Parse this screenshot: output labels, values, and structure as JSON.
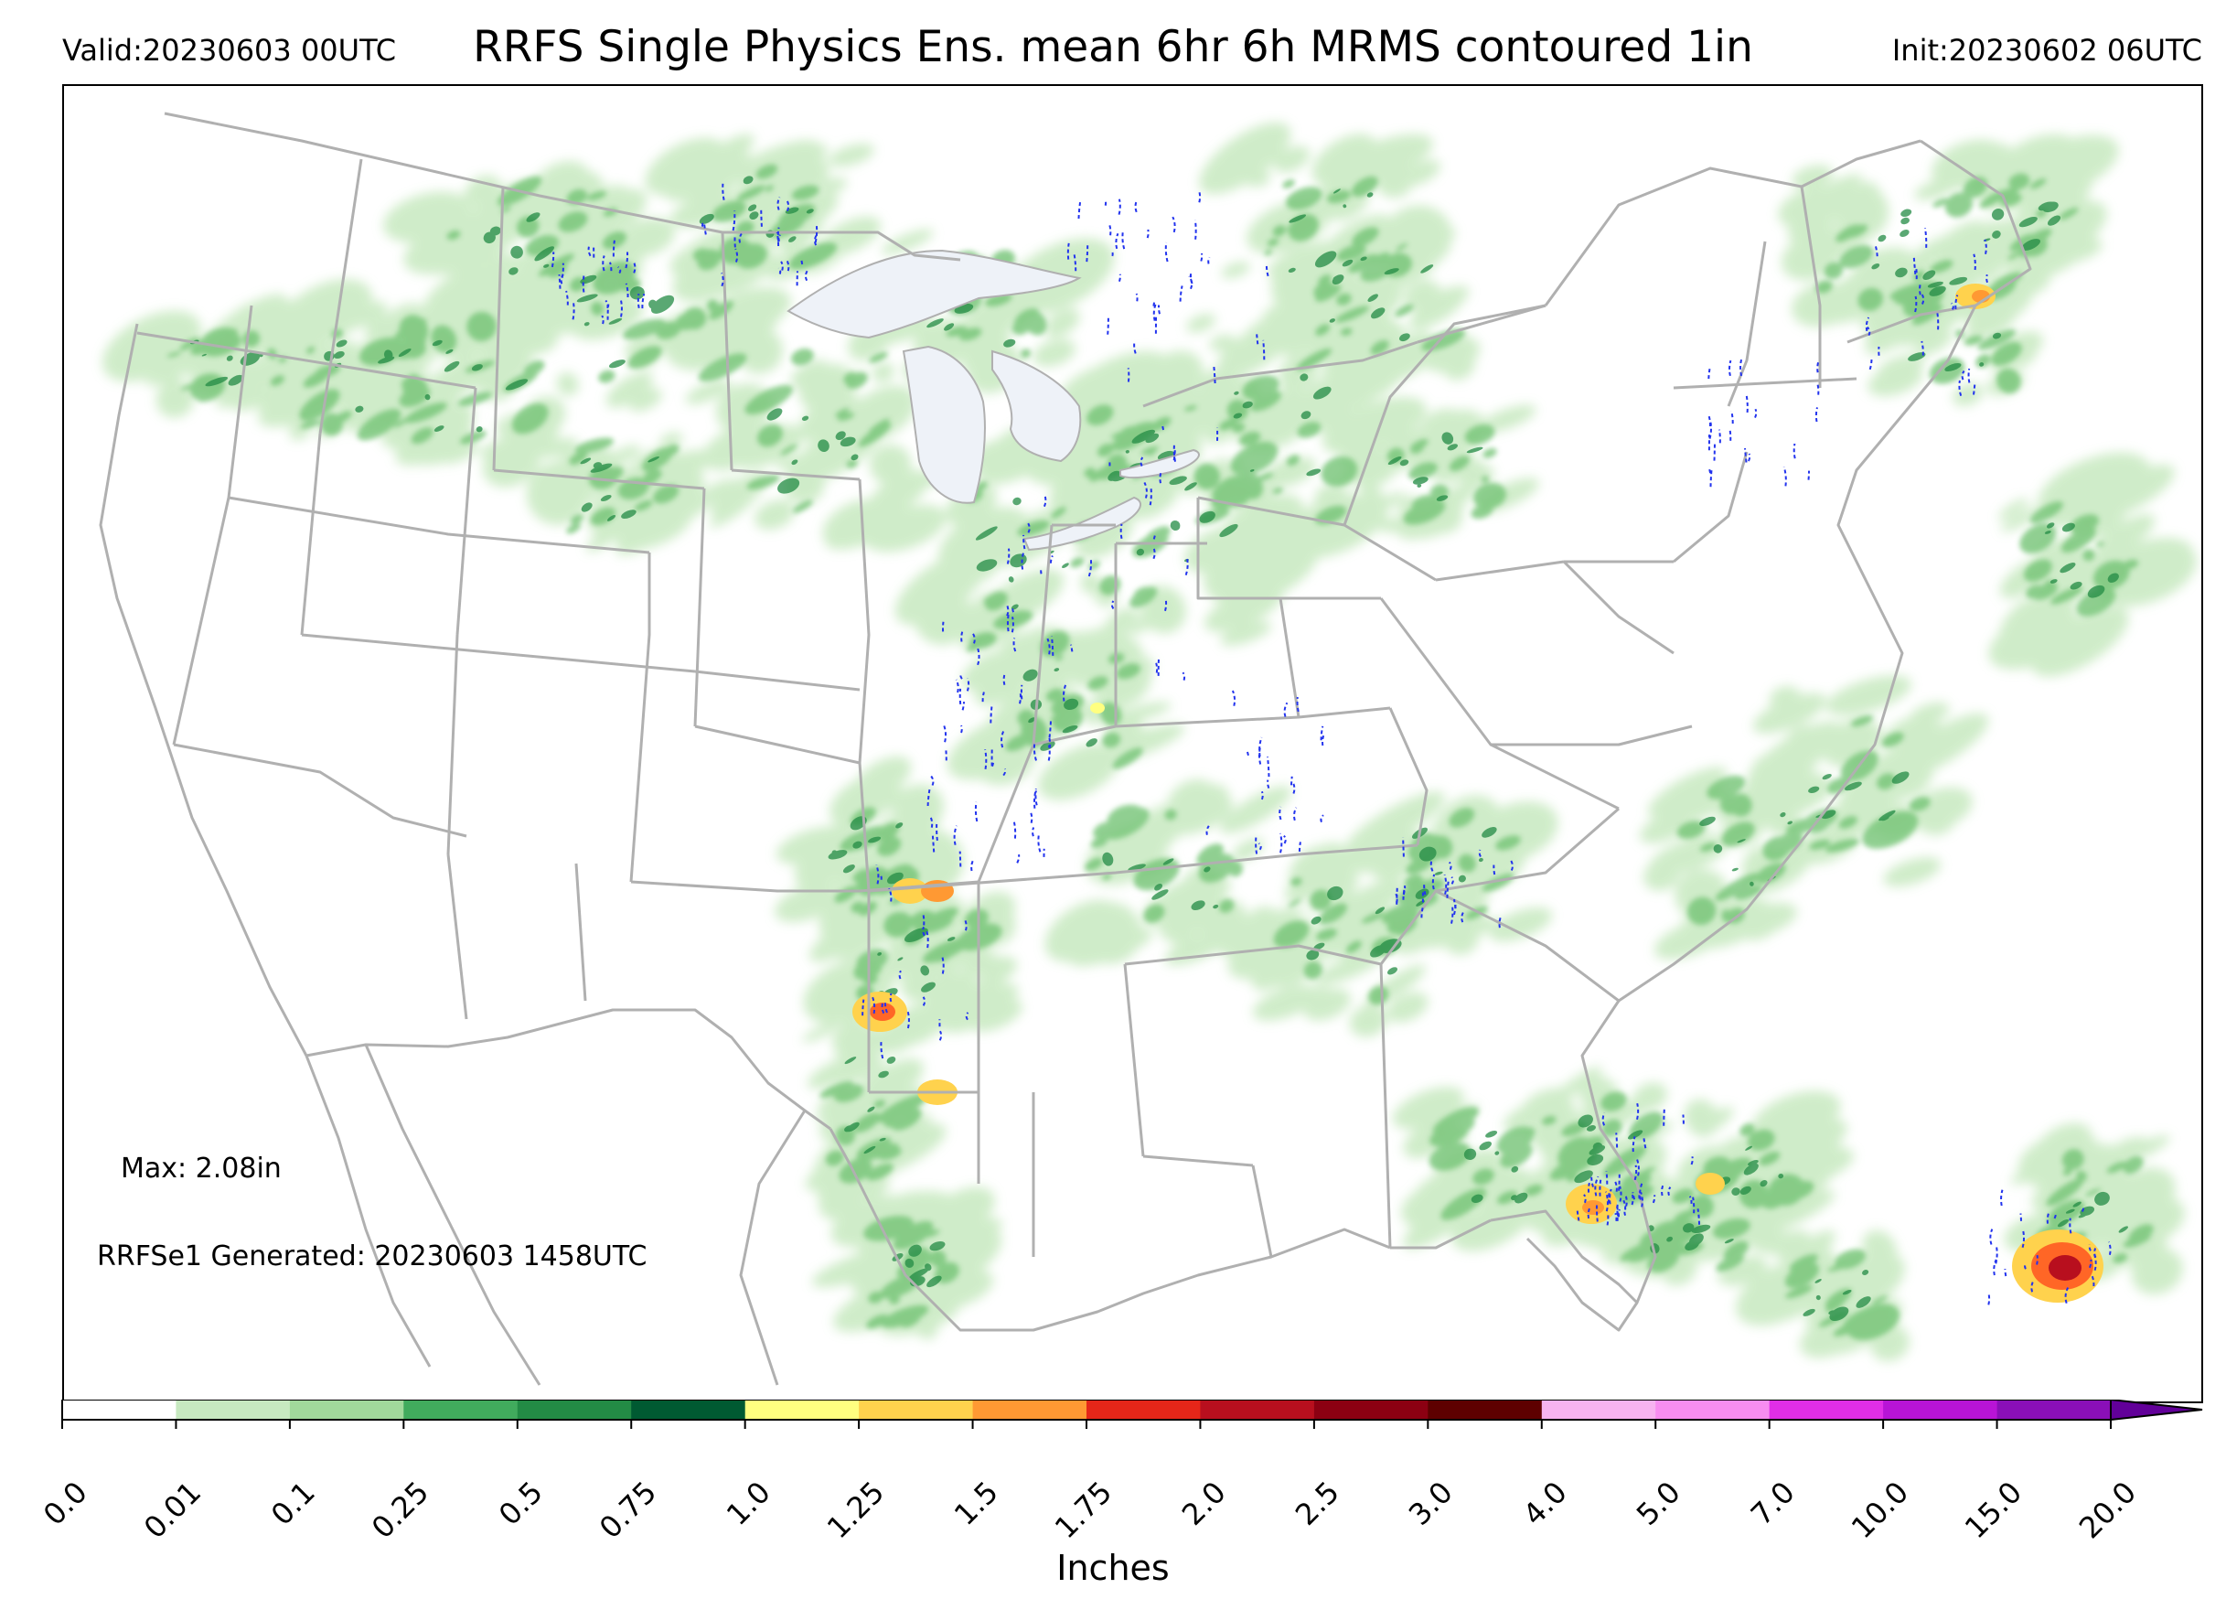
{
  "header": {
    "valid": "Valid:20230603 00UTC",
    "title": "RRFS Single Physics Ens. mean 6hr 6h MRMS contoured 1in",
    "init": "Init:20230602 06UTC"
  },
  "annotations": {
    "max": "Max: 2.08in",
    "generated": "RRFSe1 Generated: 20230603 1458UTC"
  },
  "colorbar": {
    "title": "Inches",
    "ticks": [
      "0.0",
      "0.01",
      "0.1",
      "0.25",
      "0.5",
      "0.75",
      "1.0",
      "1.25",
      "1.5",
      "1.75",
      "2.0",
      "2.5",
      "3.0",
      "4.0",
      "5.0",
      "7.0",
      "10.0",
      "15.0",
      "20.0"
    ],
    "colors": [
      "#ffffff",
      "#c7e9c0",
      "#a1d99b",
      "#74c476",
      "#41ab5d",
      "#238b45",
      "#005a32",
      "#ffff80",
      "#ffd24d",
      "#ff9933",
      "#ff6626",
      "#e52619",
      "#b80f1e",
      "#8c0012",
      "#5e0000",
      "#f7b3f0",
      "#f78df0",
      "#f75ef0",
      "#e02ee6",
      "#b814d6",
      "#8a0fb8",
      "#620099"
    ],
    "extend": "max"
  },
  "map": {
    "background": "#ffffff",
    "lake_color": "#eef2f8",
    "border_color": "#b0b0b0",
    "light_green": "#c7e9c0",
    "mid_green": "#74c476",
    "dark_green": "#238b45",
    "contour_color": "#2233ee"
  }
}
